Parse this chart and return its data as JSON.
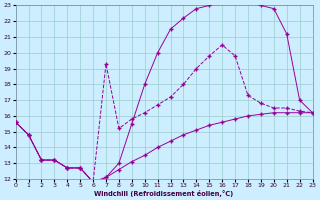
{
  "xlabel": "Windchill (Refroidissement éolien,°C)",
  "bg_color": "#cceeff",
  "line_color": "#990099",
  "grid_color": "#99cccc",
  "xlim": [
    0,
    23
  ],
  "ylim": [
    12,
    23
  ],
  "yticks": [
    12,
    13,
    14,
    15,
    16,
    17,
    18,
    19,
    20,
    21,
    22,
    23
  ],
  "xticks": [
    0,
    1,
    2,
    3,
    4,
    5,
    6,
    7,
    8,
    9,
    10,
    11,
    12,
    13,
    14,
    15,
    16,
    17,
    18,
    19,
    20,
    21,
    22,
    23
  ],
  "line1_x": [
    0,
    1,
    2,
    3,
    4,
    5,
    6,
    7,
    8,
    9,
    10,
    11,
    12,
    13,
    14,
    15,
    16,
    17,
    18,
    19,
    20,
    21,
    22,
    23
  ],
  "line1_y": [
    15.6,
    14.8,
    13.2,
    13.2,
    12.7,
    12.7,
    11.8,
    12.1,
    12.6,
    13.1,
    13.5,
    14.0,
    14.4,
    14.8,
    15.1,
    15.4,
    15.6,
    15.8,
    16.0,
    16.1,
    16.2,
    16.2,
    16.2,
    16.2
  ],
  "line2_x": [
    0,
    1,
    2,
    3,
    4,
    5,
    6,
    7,
    8,
    9,
    10,
    11,
    12,
    13,
    14,
    15,
    16,
    17,
    18,
    19,
    20,
    21,
    22,
    23
  ],
  "line2_y": [
    15.6,
    14.8,
    13.2,
    13.2,
    12.7,
    12.7,
    11.8,
    12.1,
    13.0,
    15.5,
    18.0,
    20.0,
    21.5,
    22.2,
    22.8,
    23.0,
    23.2,
    23.2,
    23.2,
    23.0,
    22.8,
    21.2,
    17.0,
    16.2
  ],
  "line3_x": [
    0,
    1,
    2,
    3,
    4,
    5,
    6,
    7,
    8,
    9,
    10,
    11,
    12,
    13,
    14,
    15,
    16,
    17,
    18,
    19,
    20,
    21,
    22,
    23
  ],
  "line3_y": [
    15.6,
    14.8,
    13.2,
    13.2,
    12.7,
    12.7,
    11.8,
    19.3,
    15.2,
    15.8,
    16.2,
    16.7,
    17.2,
    18.0,
    19.0,
    19.8,
    20.5,
    19.8,
    17.3,
    16.8,
    16.5,
    16.5,
    16.3,
    16.2
  ]
}
